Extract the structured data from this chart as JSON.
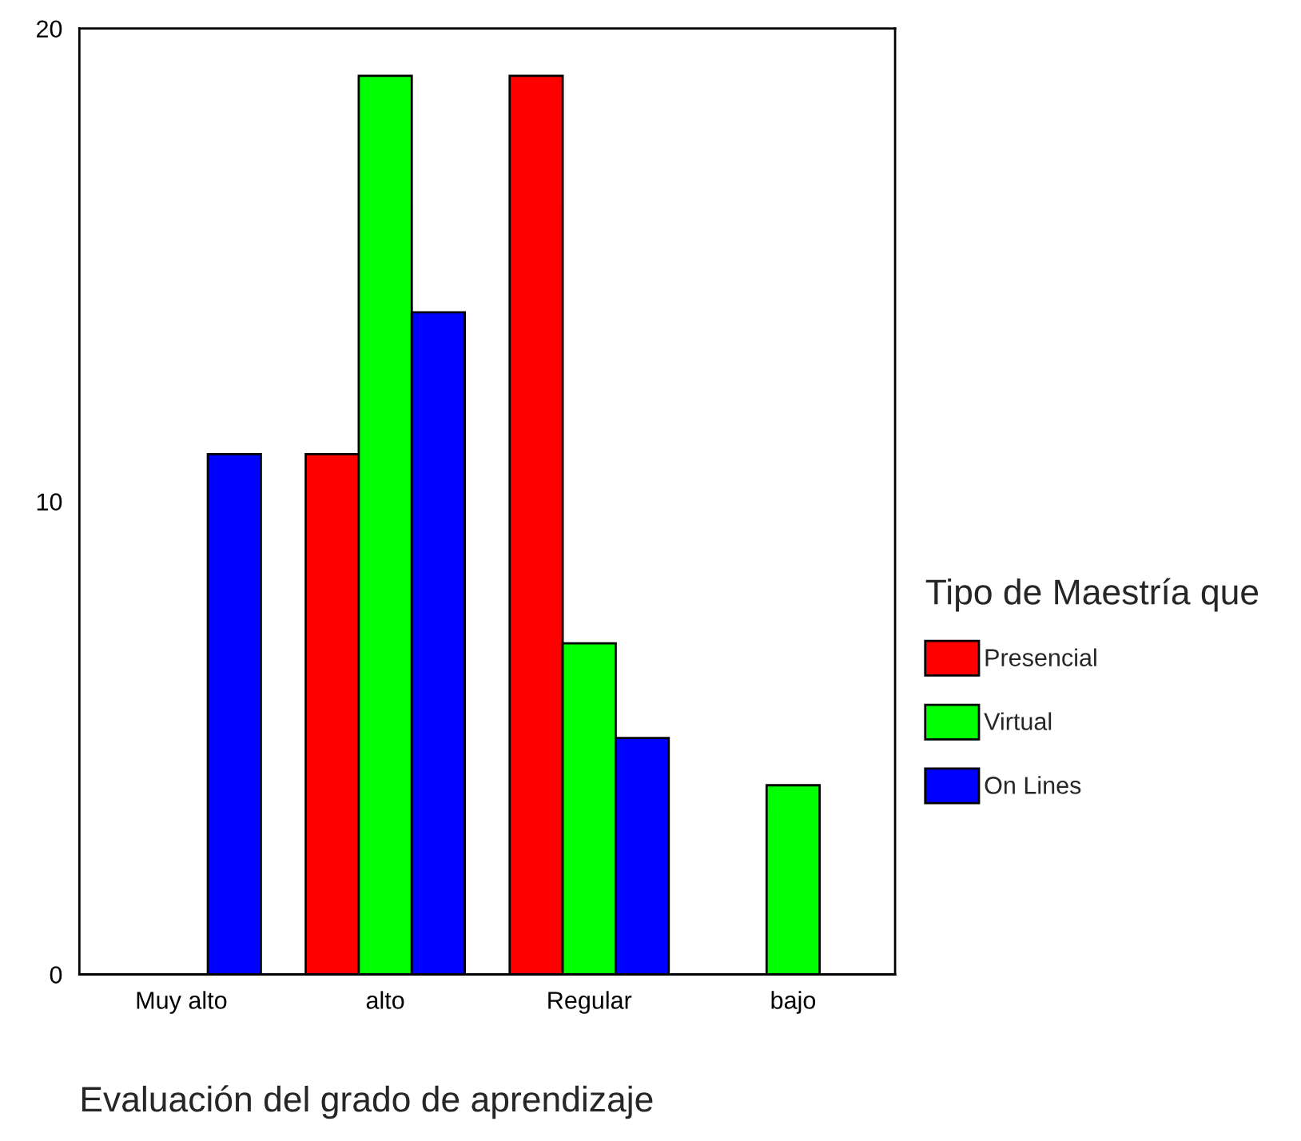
{
  "chart_data": {
    "type": "bar",
    "xlabel": "Evaluación del grado de aprendizaje",
    "legend_title": "Tipo de Maestría que",
    "categories": [
      "Muy alto",
      "alto",
      "Regular",
      "bajo"
    ],
    "series": [
      {
        "name": "Presencial",
        "color": "#ff0000",
        "values": [
          null,
          11,
          19,
          null
        ]
      },
      {
        "name": "Virtual",
        "color": "#00ff00",
        "values": [
          null,
          19,
          7,
          4
        ]
      },
      {
        "name": "On Lines",
        "color": "#0000ff",
        "values": [
          11,
          14,
          5,
          null
        ]
      }
    ],
    "ylim": [
      0,
      20
    ],
    "yticks": [
      0,
      10,
      20
    ],
    "grid": false,
    "legend": "right"
  }
}
